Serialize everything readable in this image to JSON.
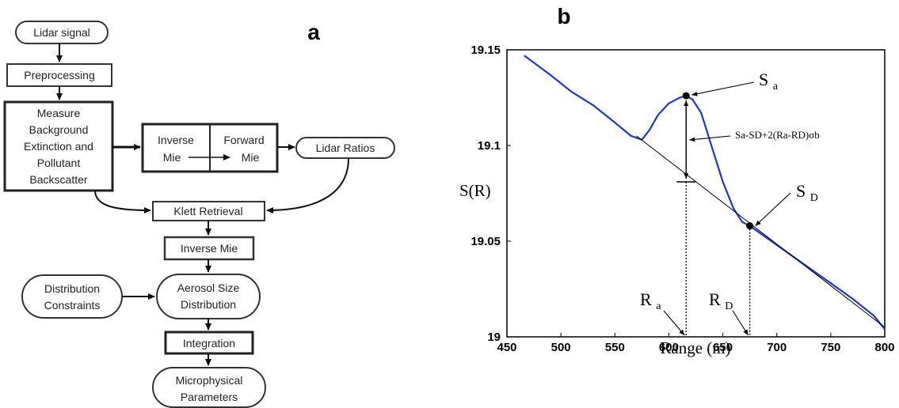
{
  "panel_a": {
    "label": "a",
    "nodes": {
      "lidar_signal": "Lidar signal",
      "preprocessing": "Preprocessing",
      "measure": [
        "Measure",
        "Background",
        "Extinction and",
        "Pollutant",
        "Backscatter"
      ],
      "inverse_mie_box": [
        "Inverse",
        "Mie"
      ],
      "forward_mie_box": [
        "Forward",
        "Mie"
      ],
      "lidar_ratios": "Lidar Ratios",
      "klett": "Klett Retrieval",
      "inverse_mie": "Inverse Mie",
      "distribution_constraints": [
        "Distribution",
        "Constraints"
      ],
      "aerosol_size": [
        "Aerosol Size",
        "Distribution"
      ],
      "integration": "Integration",
      "microphysical": [
        "Microphysical",
        "Parameters"
      ]
    }
  },
  "panel_b": {
    "label": "b",
    "annotations": {
      "sa": "S",
      "sa_sub": "a",
      "sd": "S",
      "sd_sub": "D",
      "ra": "R",
      "ra_sub": "a",
      "rd": "R",
      "rd_sub": "D",
      "formula": "Sa-SD+2(Ra-RD)σb"
    }
  },
  "chart_data": {
    "type": "line",
    "xlabel": "Range (m)",
    "ylabel": "S(R)",
    "xlim": [
      450,
      800
    ],
    "ylim": [
      19.0,
      19.15
    ],
    "xticks": [
      "450",
      "500",
      "550",
      "600",
      "650",
      "700",
      "750",
      "800"
    ],
    "yticks": [
      "19",
      "19.05",
      "19.1",
      "19.15"
    ],
    "series": [
      {
        "color": "#1f35d6",
        "x": [
          466,
          490,
          510,
          530,
          550,
          565,
          575,
          582,
          590,
          600,
          610,
          616,
          622,
          630,
          640,
          650,
          660,
          668,
          675,
          690,
          710,
          730,
          750,
          770,
          790,
          800
        ],
        "y": [
          19.147,
          19.137,
          19.128,
          19.121,
          19.112,
          19.105,
          19.103,
          19.108,
          19.116,
          19.122,
          19.125,
          19.126,
          19.124,
          19.117,
          19.099,
          19.081,
          19.067,
          19.06,
          19.058,
          19.052,
          19.044,
          19.036,
          19.028,
          19.02,
          19.011,
          19.004
        ]
      },
      {
        "color": "#000000",
        "x": [
          570,
          800
        ],
        "y": [
          19.105,
          19.005
        ]
      }
    ],
    "points": {
      "sa": {
        "x": 616,
        "y": 19.126
      },
      "sd": {
        "x": 675,
        "y": 19.058
      },
      "baseline_at_ra": {
        "x": 616,
        "y": 19.081
      }
    }
  }
}
